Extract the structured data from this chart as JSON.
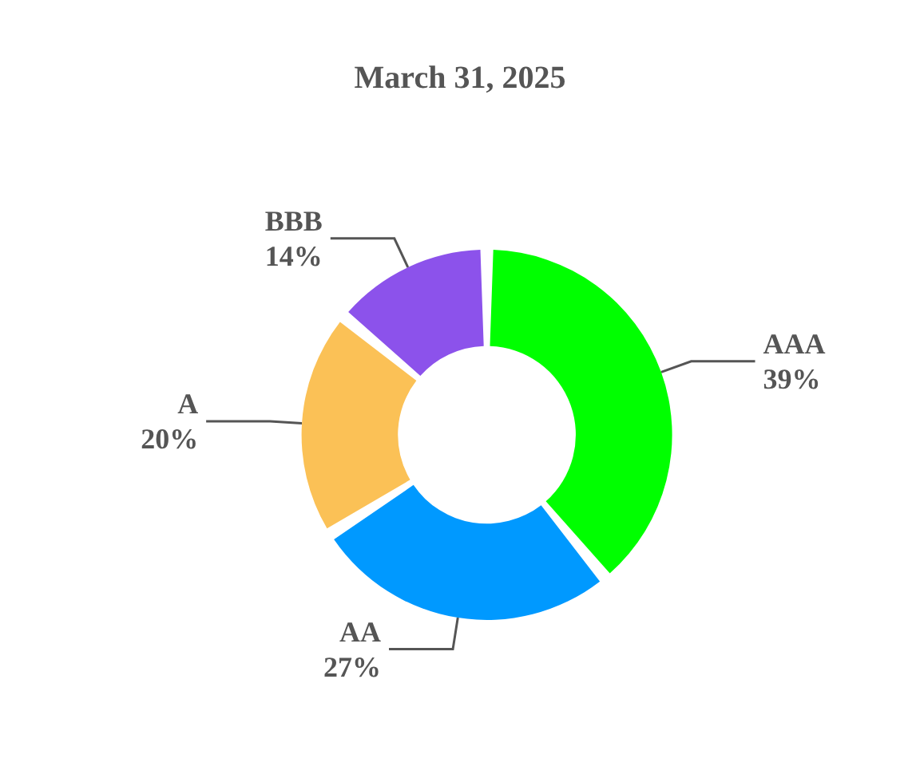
{
  "chart_data": {
    "type": "donut",
    "title": "March 31, 2025",
    "categories": [
      "AAA",
      "AA",
      "A",
      "BBB"
    ],
    "values": [
      39,
      27,
      20,
      14
    ],
    "value_labels": [
      "39%",
      "27%",
      "20%",
      "14%"
    ],
    "colors": [
      "#00ff00",
      "#0099ff",
      "#fbc156",
      "#8c52eb"
    ],
    "legend": false
  }
}
